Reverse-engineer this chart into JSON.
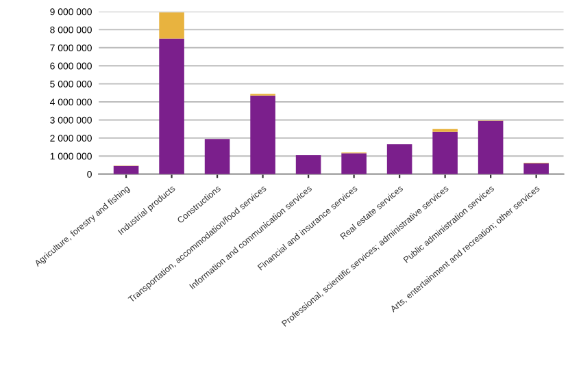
{
  "chart_data": {
    "type": "bar",
    "stacked": true,
    "categories": [
      "Agriculture, forestry and fishing",
      "Industrial products",
      "Constructions",
      "Transportation, accommodation/food services",
      "Information and communication services",
      "Financial and insurance services",
      "Real estate services",
      "Professional, scientific services; administrative services",
      "Public administration services",
      "Arts, entertainment and recreation; other services"
    ],
    "series": [
      {
        "color": "#7b1f8c",
        "values": [
          450000,
          7500000,
          1950000,
          4350000,
          1050000,
          1150000,
          1650000,
          2350000,
          2950000,
          600000
        ]
      },
      {
        "color": "#e8b33f",
        "values": [
          20000,
          1450000,
          null,
          100000,
          null,
          50000,
          null,
          150000,
          20000,
          30000
        ]
      }
    ],
    "ylim": [
      0,
      9000000
    ],
    "yticks": [
      {
        "value": 0,
        "label": "0"
      },
      {
        "value": 1000000,
        "label": "1 000 000"
      },
      {
        "value": 2000000,
        "label": "2 000 000"
      },
      {
        "value": 3000000,
        "label": "3 000 000"
      },
      {
        "value": 4000000,
        "label": "4 000 000"
      },
      {
        "value": 5000000,
        "label": "5 000 000"
      },
      {
        "value": 6000000,
        "label": "6 000 000"
      },
      {
        "value": 7000000,
        "label": "7 000 000"
      },
      {
        "value": 8000000,
        "label": "8 000 000"
      },
      {
        "value": 9000000,
        "label": "9 000 000"
      }
    ],
    "grid": "y"
  }
}
